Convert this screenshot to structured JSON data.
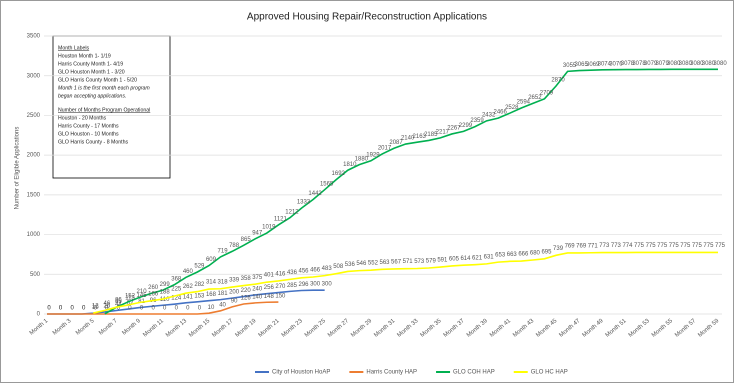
{
  "chart_data": {
    "type": "line",
    "title": "Approved Housing Repair/Reconstruction Applications",
    "y_label": "Number of Eligible Applications",
    "annotations": [
      "Month Labels",
      "Houston Month 1- 1/19",
      "Harris County Month 1- 4/19",
      "GLO Houston Month 1 - 3/20",
      "GLO Harris County Month 1 - 5/20",
      "Month 1 is the first month each program",
      "began accepting applications.",
      "Number of Months Program Operational",
      "Houston - 20 Months",
      "Harris County - 17 Months",
      "GLO Houston - 10 Months",
      "GLO Harris County - 8 Months"
    ],
    "categories": [
      "Month 1",
      null,
      "Month 3",
      null,
      "Month 5",
      null,
      "Month 7",
      null,
      "Month 9",
      null,
      "Month 11",
      null,
      "Month 13",
      null,
      "Month 15",
      null,
      "Month 17",
      null,
      "Month 19",
      null,
      "Month 21",
      null,
      "Month 23",
      null,
      "Month 25",
      null,
      "Month 27",
      null,
      "Month 29",
      null,
      "Month 31",
      null,
      "Month 33",
      null,
      "Month 35",
      null,
      "Month 37",
      null,
      "Month 39",
      null,
      "Month 41",
      null,
      "Month 43",
      null,
      "Month 45",
      null,
      "Month 47",
      null,
      "Month 49",
      null,
      "Month 51",
      null,
      "Month 53",
      null,
      "Month 55",
      null,
      "Month 57",
      null,
      "Month 59"
    ],
    "series": [
      {
        "name": "City of Houston HoAP",
        "color": "#4472c4",
        "values": [
          0,
          0,
          0,
          0,
          10,
          26,
          44,
          62,
          81,
          96,
          110,
          124,
          141,
          153,
          168,
          181,
          200,
          220,
          240,
          256,
          270,
          285,
          296,
          300,
          300,
          null,
          null,
          null,
          null,
          null,
          null,
          null,
          null,
          null,
          null,
          null,
          null,
          null,
          null,
          null,
          null,
          null,
          null,
          null,
          null,
          null,
          null,
          null,
          null,
          null,
          null,
          null,
          null,
          null,
          null,
          null,
          null,
          null,
          null
        ]
      },
      {
        "name": "Harris County HAP",
        "color": "#ed7d31",
        "values": [
          0,
          0,
          0,
          0,
          0,
          0,
          0,
          0,
          0,
          0,
          0,
          0,
          0,
          0,
          10,
          40,
          90,
          126,
          140,
          148,
          150,
          null,
          null,
          null,
          null,
          null,
          null,
          null,
          null,
          null,
          null,
          null,
          null,
          null,
          null,
          null,
          null,
          null,
          null,
          null,
          null,
          null,
          null,
          null,
          null,
          null,
          null,
          null,
          null,
          null,
          null,
          null,
          null,
          null,
          null,
          null,
          null,
          null,
          null
        ]
      },
      {
        "name": "GLO COH HAP",
        "color": "#00b050",
        "values": [
          null,
          null,
          null,
          null,
          null,
          3,
          85,
          152,
          210,
          260,
          299,
          368,
          460,
          529,
          609,
          719,
          788,
          865,
          947,
          1019,
          1121,
          1212,
          1333,
          1442,
          1565,
          1692,
          1810,
          1880,
          1929,
          2017,
          2087,
          2140,
          2163,
          2185,
          2217,
          2267,
          2299,
          2359,
          2432,
          2466,
          2528,
          2594,
          2652,
          2709,
          2870,
          3055,
          3065,
          3069,
          3074,
          3076,
          3078,
          3078,
          3079,
          3079,
          3080,
          3080,
          3080,
          3080,
          3080
        ]
      },
      {
        "name": "GLO HC HAP",
        "color": "#ffff00",
        "values": [
          null,
          null,
          null,
          null,
          12,
          46,
          86,
          113,
          145,
          166,
          188,
          225,
          262,
          282,
          314,
          318,
          339,
          358,
          375,
          401,
          416,
          436,
          456,
          466,
          483,
          508,
          536,
          546,
          552,
          563,
          567,
          571,
          573,
          579,
          591,
          605,
          614,
          621,
          631,
          653,
          663,
          666,
          680,
          695,
          739,
          769,
          769,
          771,
          773,
          773,
          774,
          775,
          775,
          775,
          775,
          775,
          775,
          775,
          775
        ]
      }
    ],
    "ylim": [
      0,
      3500
    ],
    "yticks": [
      0,
      500,
      1000,
      1500,
      2000,
      2500,
      3000,
      3500
    ],
    "grid": true,
    "legend": "bottom"
  }
}
